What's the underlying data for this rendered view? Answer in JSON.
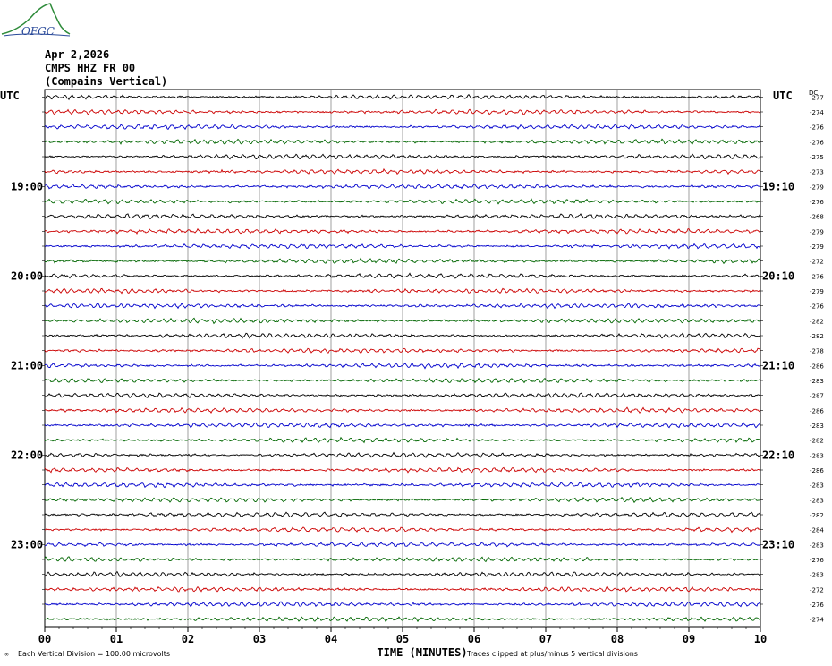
{
  "header": {
    "logo_text": "OFGC",
    "date": "Apr 2,2026",
    "station": "CMPS HHZ FR 00",
    "location": "(Compains Vertical)"
  },
  "footer": {
    "division_note": "Each Vertical Division =  100.00 microvolts",
    "xlabel": "TIME (MINUTES)",
    "clip_note": "Traces clipped at plus/minus 5 vertical divisions"
  },
  "colors": {
    "cycle": [
      "#000000",
      "#cc0000",
      "#0000cc",
      "#006600"
    ],
    "grid": "#888888"
  },
  "chart_data": {
    "type": "line",
    "title": "",
    "xlabel": "TIME (MINUTES)",
    "ylabel": "",
    "xlim": [
      0,
      10
    ],
    "x_ticks": [
      "00",
      "01",
      "02",
      "03",
      "04",
      "05",
      "06",
      "07",
      "08",
      "09",
      "10"
    ],
    "left_axis_label": "UTC",
    "right_axis_label": "UTC",
    "dc_label": "DC",
    "left_hour_labels": [
      {
        "trace": 6,
        "label": "19:00"
      },
      {
        "trace": 12,
        "label": "20:00"
      },
      {
        "trace": 18,
        "label": "21:00"
      },
      {
        "trace": 24,
        "label": "22:00"
      },
      {
        "trace": 30,
        "label": "23:00"
      }
    ],
    "right_hour_labels": [
      {
        "trace": 6,
        "label": "19:10"
      },
      {
        "trace": 12,
        "label": "20:10"
      },
      {
        "trace": 18,
        "label": "21:10"
      },
      {
        "trace": 24,
        "label": "22:10"
      },
      {
        "trace": 30,
        "label": "23:10"
      }
    ],
    "dc_offsets": [
      "-277",
      "-274",
      "-276",
      "-276",
      "-275",
      "-273",
      "-279",
      "-276",
      "-268",
      "-279",
      "-279",
      "-272",
      "-276",
      "-279",
      "-276",
      "-282",
      "-282",
      "-278",
      "-286",
      "-283",
      "-287",
      "-286",
      "-283",
      "-282",
      "-283",
      "-286",
      "-283",
      "-283",
      "-282",
      "-284",
      "-283",
      "-276",
      "-283",
      "-272",
      "-276",
      "-274"
    ],
    "trace_count": 36,
    "clip_divisions": 5
  }
}
